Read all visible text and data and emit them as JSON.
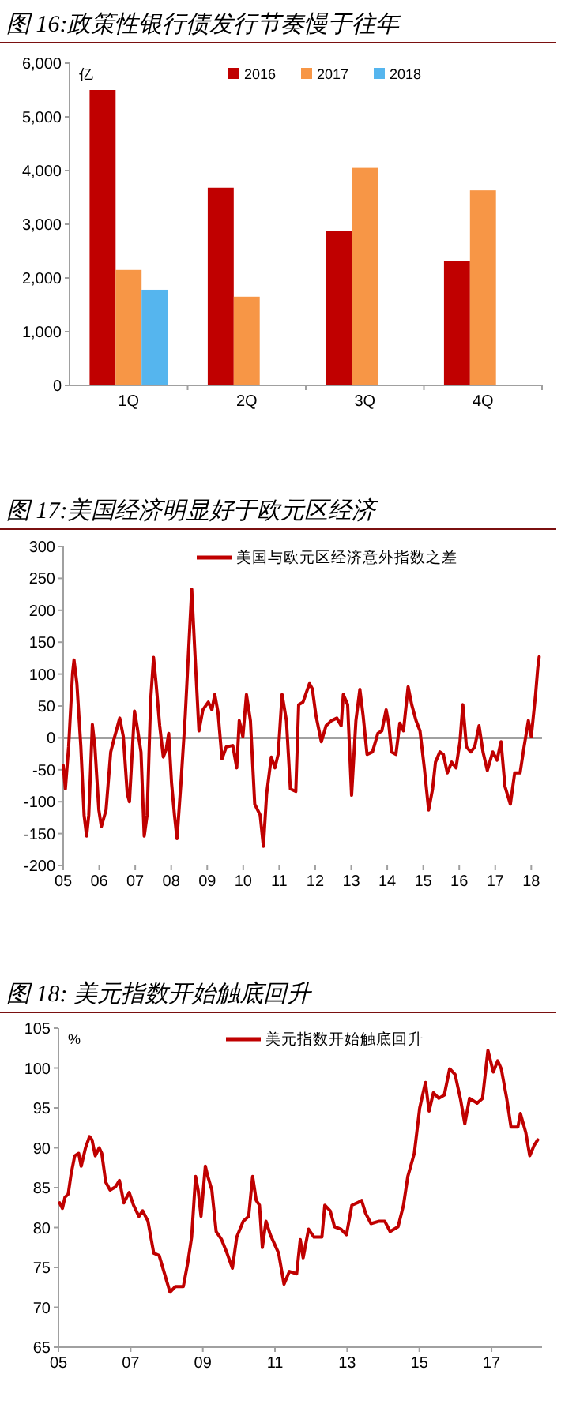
{
  "chart_data": [
    {
      "type": "bar",
      "title": "图 16:政策性银行债发行节奏慢于往年",
      "ylabel": "亿",
      "categories": [
        "1Q",
        "2Q",
        "3Q",
        "4Q"
      ],
      "series": [
        {
          "name": "2016",
          "color": "#c00000",
          "values": [
            5500,
            3680,
            2880,
            2320
          ]
        },
        {
          "name": "2017",
          "color": "#f79646",
          "values": [
            2150,
            1650,
            4050,
            3630
          ]
        },
        {
          "name": "2018",
          "color": "#55b5ee",
          "values": [
            1780,
            null,
            null,
            null
          ]
        }
      ],
      "ylim": [
        0,
        6000
      ],
      "yticks": [
        0,
        {
          "value": 1000,
          "label": "1,000"
        },
        {
          "value": 2000,
          "label": "2,000"
        },
        {
          "value": 3000,
          "label": "3,000"
        },
        {
          "value": 4000,
          "label": "4,000"
        },
        {
          "value": 5000,
          "label": "5,000"
        },
        {
          "value": 6000,
          "label": "6,000"
        }
      ],
      "legend": "top",
      "grid": false
    },
    {
      "type": "line",
      "title": "图 17:美国经济明显好于欧元区经济",
      "series": [
        {
          "name": "美国与欧元区经济意外指数之差",
          "color": "#c00000",
          "x": [
            2005.0,
            2005.06,
            2005.15,
            2005.26,
            2005.3,
            2005.38,
            2005.49,
            2005.58,
            2005.65,
            2005.71,
            2005.81,
            2005.88,
            2005.99,
            2006.06,
            2006.19,
            2006.32,
            2006.41,
            2006.57,
            2006.67,
            2006.78,
            2006.84,
            2006.98,
            2007.05,
            2007.16,
            2007.25,
            2007.33,
            2007.43,
            2007.51,
            2007.58,
            2007.68,
            2007.78,
            2007.86,
            2007.93,
            2008.01,
            2008.09,
            2008.16,
            2008.27,
            2008.39,
            2008.57,
            2008.65,
            2008.77,
            2008.88,
            2009.03,
            2009.13,
            2009.21,
            2009.3,
            2009.41,
            2009.53,
            2009.71,
            2009.82,
            2009.89,
            2009.99,
            2010.09,
            2010.2,
            2010.32,
            2010.47,
            2010.56,
            2010.65,
            2010.78,
            2010.88,
            2010.97,
            2011.08,
            2011.2,
            2011.31,
            2011.46,
            2011.54,
            2011.66,
            2011.84,
            2011.92,
            2012.02,
            2012.17,
            2012.3,
            2012.45,
            2012.6,
            2012.72,
            2012.78,
            2012.9,
            2013.01,
            2013.13,
            2013.24,
            2013.33,
            2013.44,
            2013.59,
            2013.74,
            2013.85,
            2013.97,
            2014.04,
            2014.12,
            2014.24,
            2014.35,
            2014.45,
            2014.58,
            2014.68,
            2014.8,
            2014.91,
            2015.03,
            2015.15,
            2015.26,
            2015.34,
            2015.46,
            2015.56,
            2015.67,
            2015.79,
            2015.91,
            2016.02,
            2016.1,
            2016.2,
            2016.32,
            2016.43,
            2016.55,
            2016.66,
            2016.78,
            2016.93,
            2017.05,
            2017.16,
            2017.27,
            2017.42,
            2017.54,
            2017.69,
            2017.8,
            2017.92,
            2018.0,
            2018.12,
            2018.18,
            2018.22
          ],
          "values": [
            -43,
            -80,
            -14,
            101,
            122,
            85,
            -14,
            -121,
            -154,
            -121,
            21,
            -14,
            -113,
            -139,
            -113,
            -22,
            -2,
            31,
            2,
            -88,
            -100,
            42,
            19,
            -22,
            -154,
            -121,
            60,
            126,
            85,
            19,
            -30,
            -18,
            7,
            -71,
            -121,
            -158,
            -71,
            35,
            233,
            142,
            11,
            44,
            56,
            44,
            68,
            40,
            -33,
            -14,
            -12,
            -47,
            27,
            2,
            68,
            27,
            -104,
            -121,
            -170,
            -88,
            -30,
            -47,
            -26,
            68,
            27,
            -80,
            -84,
            52,
            56,
            85,
            77,
            35,
            -6,
            19,
            27,
            31,
            19,
            68,
            52,
            -90,
            27,
            76,
            35,
            -26,
            -22,
            7,
            11,
            44,
            23,
            -22,
            -26,
            23,
            11,
            80,
            52,
            27,
            11,
            -47,
            -113,
            -80,
            -38,
            -22,
            -26,
            -55,
            -38,
            -47,
            -6,
            52,
            -14,
            -22,
            -14,
            19,
            -22,
            -51,
            -22,
            -35,
            -6,
            -76,
            -104,
            -55,
            -55,
            -14,
            27,
            2,
            68,
            109,
            127
          ]
        }
      ],
      "xlim": [
        2005,
        2018.3
      ],
      "xticks": [
        {
          "value": 2005,
          "label": "05"
        },
        {
          "value": 2006,
          "label": "06"
        },
        {
          "value": 2007,
          "label": "07"
        },
        {
          "value": 2008,
          "label": "08"
        },
        {
          "value": 2009,
          "label": "09"
        },
        {
          "value": 2010,
          "label": "10"
        },
        {
          "value": 2011,
          "label": "11"
        },
        {
          "value": 2012,
          "label": "12"
        },
        {
          "value": 2013,
          "label": "13"
        },
        {
          "value": 2014,
          "label": "14"
        },
        {
          "value": 2015,
          "label": "15"
        },
        {
          "value": 2016,
          "label": "16"
        },
        {
          "value": 2017,
          "label": "17"
        },
        {
          "value": 2018,
          "label": "18"
        }
      ],
      "ylim": [
        -200,
        300
      ],
      "yticks": [
        -200,
        -150,
        -100,
        -50,
        0,
        50,
        100,
        150,
        200,
        250,
        300
      ],
      "ref_lines": [
        {
          "axis": "y",
          "value": 0,
          "color": "#a0a0a0"
        }
      ],
      "legend": "top",
      "marker": "none",
      "line_style": "solid"
    },
    {
      "type": "line",
      "title": "图 18: 美元指数开始触底回升",
      "ylabel": "%",
      "series": [
        {
          "name": "美元指数开始触底回升",
          "color": "#c00000",
          "x": [
            2005.03,
            2005.11,
            2005.18,
            2005.27,
            2005.35,
            2005.45,
            2005.56,
            2005.63,
            2005.75,
            2005.86,
            2005.93,
            2006.02,
            2006.13,
            2006.2,
            2006.31,
            2006.43,
            2006.58,
            2006.69,
            2006.81,
            2006.96,
            2007.08,
            2007.23,
            2007.33,
            2007.48,
            2007.64,
            2007.79,
            2007.94,
            2008.09,
            2008.24,
            2008.46,
            2008.58,
            2008.69,
            2008.8,
            2008.87,
            2008.95,
            2009.07,
            2009.14,
            2009.25,
            2009.37,
            2009.52,
            2009.67,
            2009.82,
            2009.94,
            2010.12,
            2010.27,
            2010.38,
            2010.48,
            2010.57,
            2010.65,
            2010.75,
            2010.87,
            2011.1,
            2011.25,
            2011.4,
            2011.6,
            2011.7,
            2011.78,
            2011.93,
            2012.08,
            2012.3,
            2012.38,
            2012.53,
            2012.65,
            2012.83,
            2012.98,
            2013.13,
            2013.28,
            2013.4,
            2013.51,
            2013.66,
            2013.89,
            2014.04,
            2014.19,
            2014.41,
            2014.56,
            2014.68,
            2014.86,
            2015.01,
            2015.17,
            2015.27,
            2015.39,
            2015.54,
            2015.69,
            2015.84,
            2015.99,
            2016.14,
            2016.26,
            2016.39,
            2016.6,
            2016.75,
            2016.9,
            2017.05,
            2017.17,
            2017.27,
            2017.42,
            2017.54,
            2017.73,
            2017.8,
            2017.95,
            2018.06,
            2018.18,
            2018.28
          ],
          "values": [
            83.1,
            82.4,
            83.8,
            84.2,
            86.7,
            89.0,
            89.3,
            87.7,
            90.0,
            91.4,
            91.0,
            89.0,
            90.0,
            89.3,
            85.7,
            84.7,
            85.1,
            85.9,
            83.1,
            84.4,
            82.8,
            81.4,
            82.1,
            80.8,
            76.8,
            76.5,
            74.2,
            71.9,
            72.6,
            72.6,
            75.5,
            78.8,
            86.4,
            84.7,
            81.4,
            87.7,
            86.4,
            84.7,
            79.5,
            78.5,
            76.8,
            74.9,
            78.8,
            80.8,
            81.4,
            86.4,
            83.4,
            82.8,
            77.5,
            80.8,
            79.1,
            76.8,
            72.9,
            74.5,
            74.2,
            78.5,
            76.2,
            79.8,
            78.8,
            78.8,
            82.8,
            82.1,
            80.1,
            79.8,
            79.1,
            82.8,
            83.1,
            83.4,
            81.8,
            80.5,
            80.8,
            80.8,
            79.5,
            80.1,
            82.8,
            86.4,
            89.3,
            95.0,
            98.2,
            94.6,
            96.9,
            96.2,
            96.6,
            99.9,
            99.2,
            96.1,
            93.0,
            96.2,
            95.6,
            96.2,
            102.2,
            99.5,
            100.9,
            99.9,
            96.2,
            92.6,
            92.6,
            94.3,
            91.9,
            89.0,
            90.3,
            91.0
          ]
        }
      ],
      "xlim": [
        2005,
        2018.4
      ],
      "xticks": [
        {
          "value": 2005,
          "label": "05"
        },
        {
          "value": 2007,
          "label": "07"
        },
        {
          "value": 2009,
          "label": "09"
        },
        {
          "value": 2011,
          "label": "11"
        },
        {
          "value": 2013,
          "label": "13"
        },
        {
          "value": 2015,
          "label": "15"
        },
        {
          "value": 2017,
          "label": "17"
        }
      ],
      "ylim": [
        65,
        105
      ],
      "yticks": [
        65,
        70,
        75,
        80,
        85,
        90,
        95,
        100,
        105
      ],
      "legend": "top",
      "grid": false,
      "marker": "none",
      "line_style": "solid"
    }
  ]
}
